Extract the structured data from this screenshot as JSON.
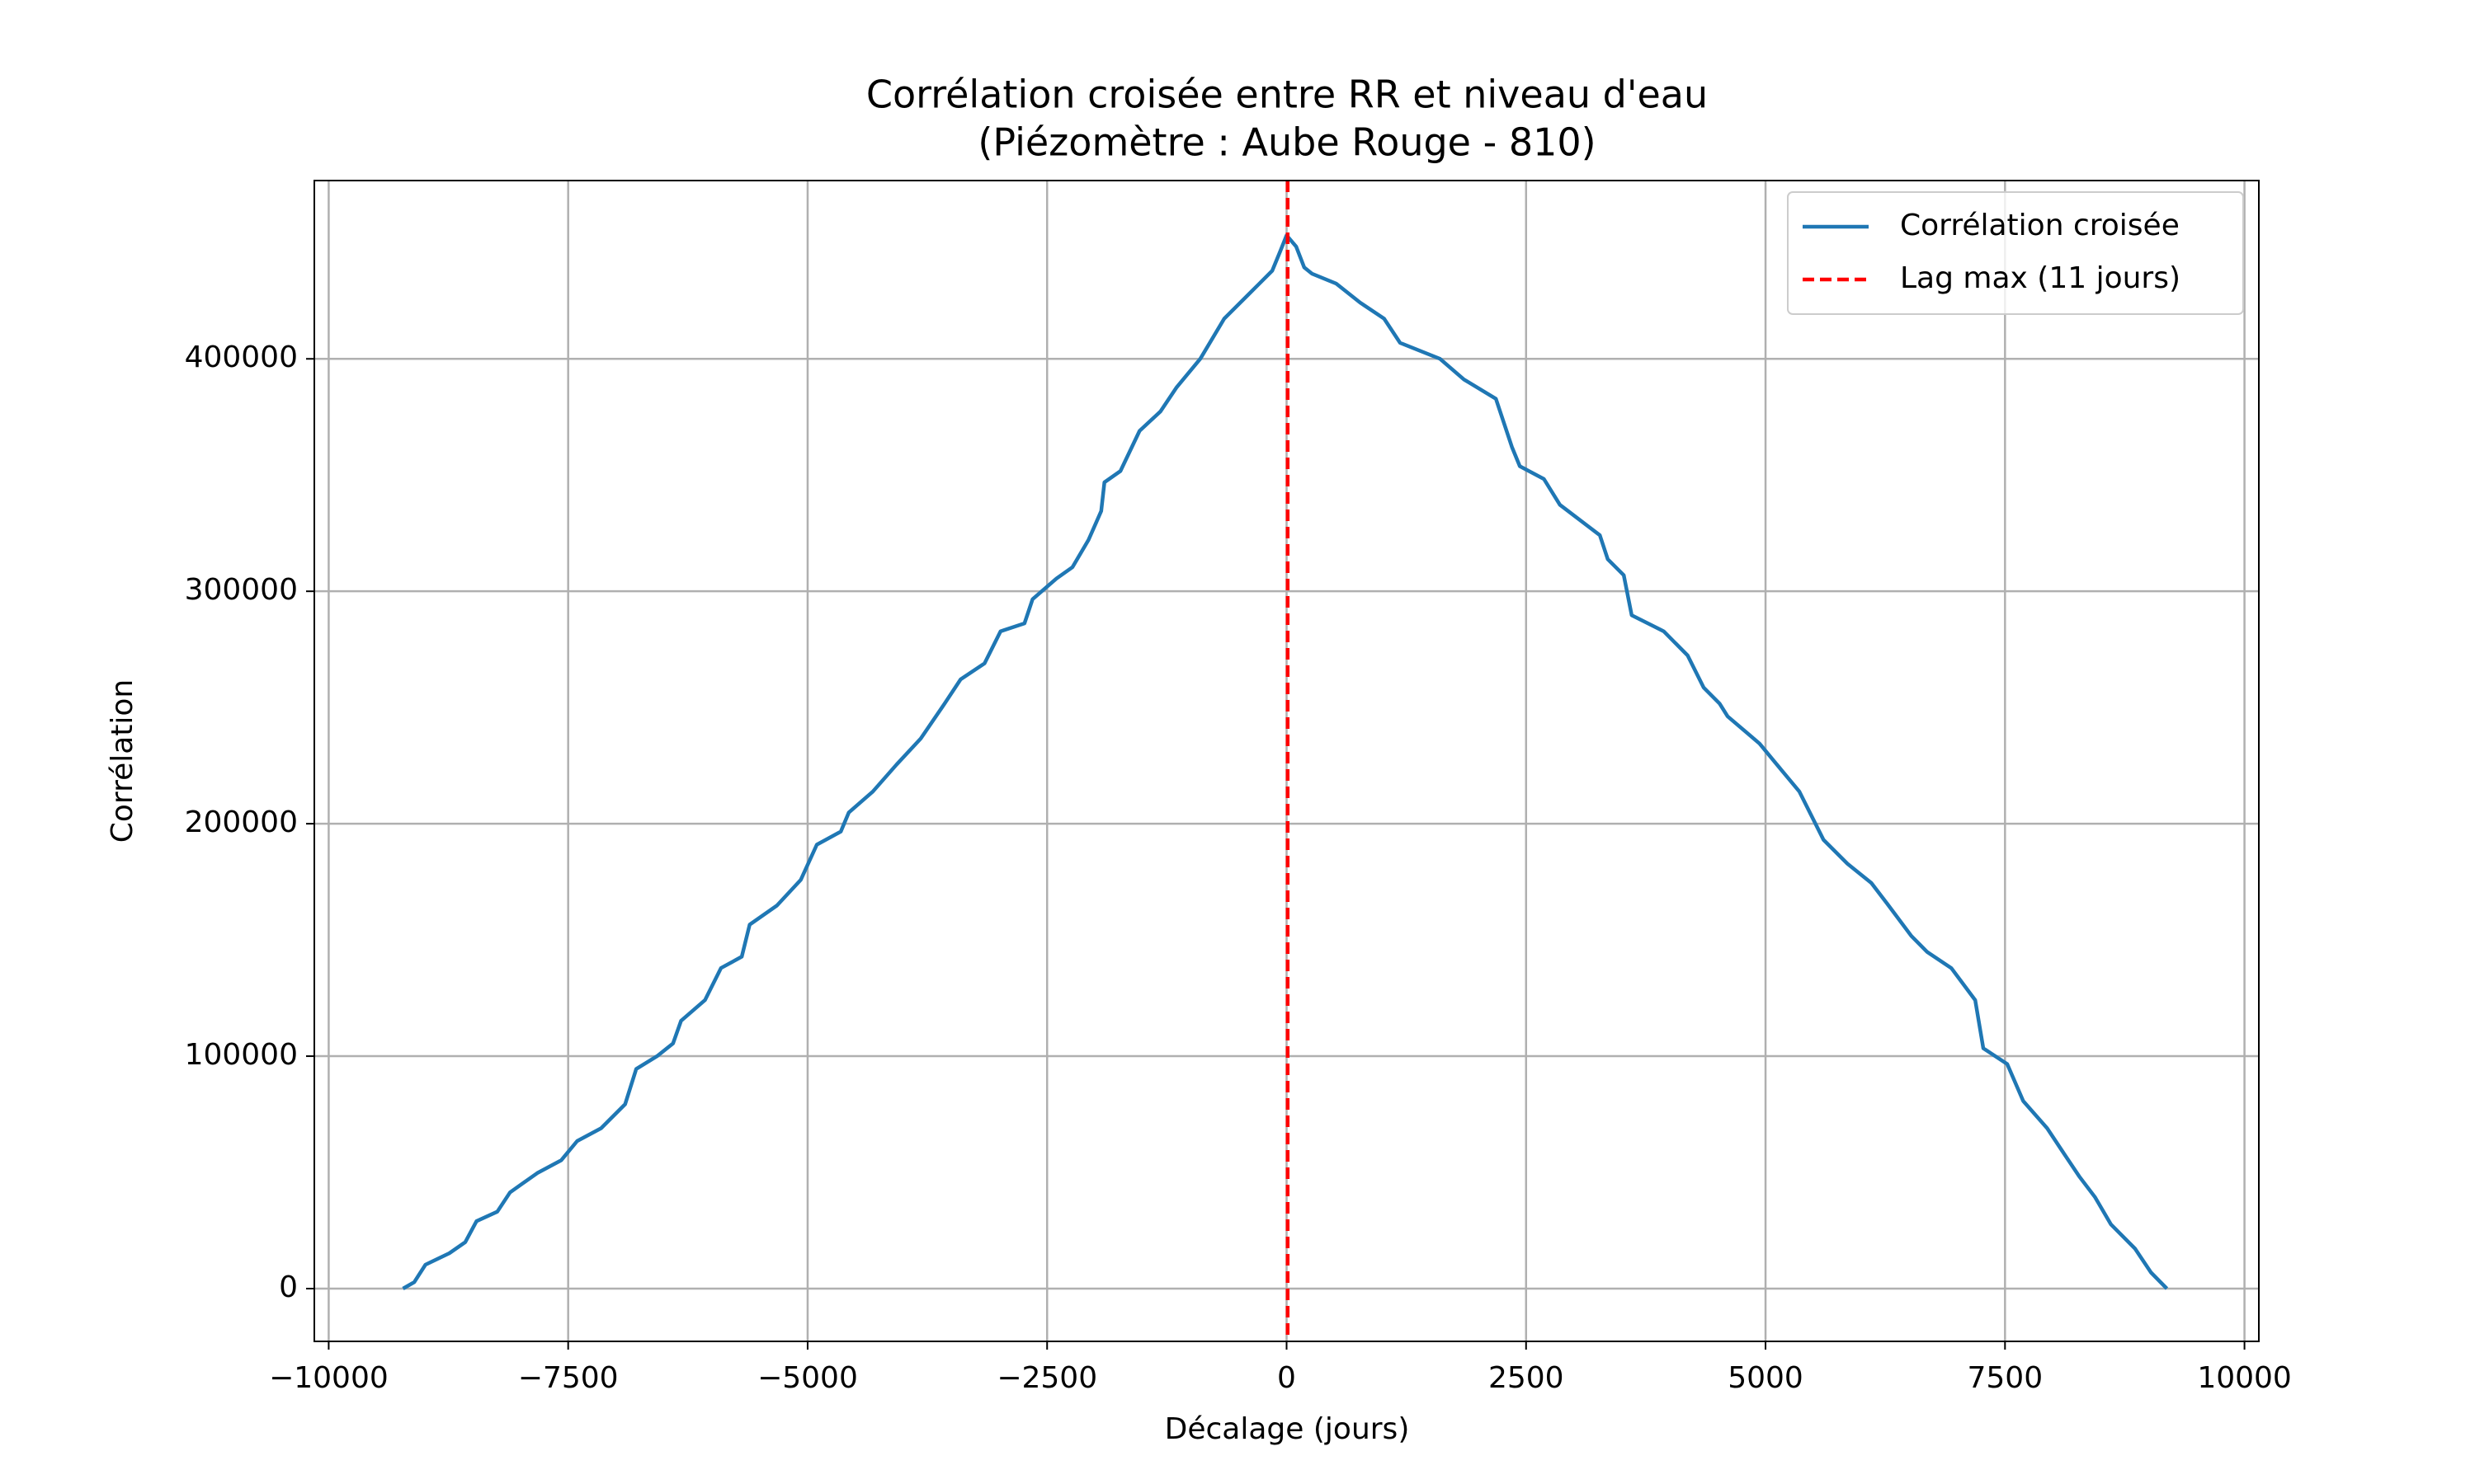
{
  "chart_data": {
    "type": "line",
    "title": "Corrélation croisée entre RR et niveau d'eau",
    "subtitle": "(Piézomètre : Aube Rouge - 810)",
    "x_label": "Décalage (jours)",
    "y_label": "Corrélation",
    "x": [
      -9224,
      -9107,
      -8990,
      -8741,
      -8574,
      -8457,
      -8240,
      -8107,
      -7823,
      -7573,
      -7406,
      -7156,
      -6906,
      -6789,
      -6572,
      -6405,
      -6322,
      -6072,
      -5905,
      -5688,
      -5605,
      -5321,
      -5071,
      -4904,
      -4654,
      -4571,
      -4320,
      -4070,
      -3820,
      -3570,
      -3403,
      -3153,
      -2986,
      -2736,
      -2652,
      -2402,
      -2235,
      -2068,
      -1935,
      -1902,
      -1735,
      -1535,
      -1318,
      -1151,
      -901,
      -651,
      -400,
      -150,
      -67,
      0,
      100,
      184,
      267,
      517,
      767,
      1018,
      1184,
      1601,
      1852,
      2185,
      2352,
      2435,
      2686,
      2853,
      3270,
      3353,
      3520,
      3603,
      3937,
      4187,
      4354,
      4521,
      4604,
      4938,
      5104,
      5354,
      5605,
      5855,
      6105,
      6272,
      6522,
      6689,
      6939,
      7189,
      7273,
      7523,
      7690,
      7940,
      8107,
      8274,
      8440,
      8607,
      8857,
      9024,
      9190
    ],
    "series": [
      {
        "name": "Corrélation croisée",
        "color": "#1f77b4",
        "values": [
          0,
          2760,
          10300,
          15200,
          20000,
          29000,
          33100,
          41400,
          49700,
          55200,
          63500,
          69000,
          79300,
          94500,
          100000,
          105500,
          115200,
          124100,
          137900,
          142800,
          156600,
          164800,
          175900,
          191000,
          196600,
          204800,
          213800,
          225500,
          236600,
          251700,
          262100,
          269000,
          282800,
          286200,
          296600,
          305500,
          310400,
          322100,
          334500,
          346900,
          351700,
          369000,
          377300,
          387600,
          400000,
          417300,
          427600,
          437900,
          446200,
          453100,
          448300,
          439300,
          436600,
          432400,
          424200,
          417300,
          406900,
          400000,
          391100,
          382800,
          362100,
          353800,
          348300,
          337200,
          324100,
          313800,
          306900,
          289700,
          282800,
          272400,
          258600,
          251700,
          246200,
          234500,
          226200,
          213800,
          193100,
          182800,
          174500,
          165500,
          151700,
          144800,
          137900,
          124100,
          103400,
          96600,
          80700,
          69000,
          58600,
          48300,
          39300,
          27600,
          17200,
          6900,
          0
        ]
      }
    ],
    "vline": {
      "name": "Lag max (11 jours)",
      "x": 11,
      "color": "#ff0000"
    },
    "xlim": [
      -10150,
      10150
    ],
    "xticks": [
      {
        "value": -10000,
        "label": "−10000"
      },
      {
        "value": -7500,
        "label": "−7500"
      },
      {
        "value": -5000,
        "label": "−5000"
      },
      {
        "value": -2500,
        "label": "−2500"
      },
      0,
      2500,
      5000,
      7500,
      10000
    ],
    "ylim": [
      -22700,
      476700
    ],
    "yticks": [
      0,
      100000,
      200000,
      300000,
      400000
    ],
    "grid": true,
    "legend": "upper right"
  }
}
